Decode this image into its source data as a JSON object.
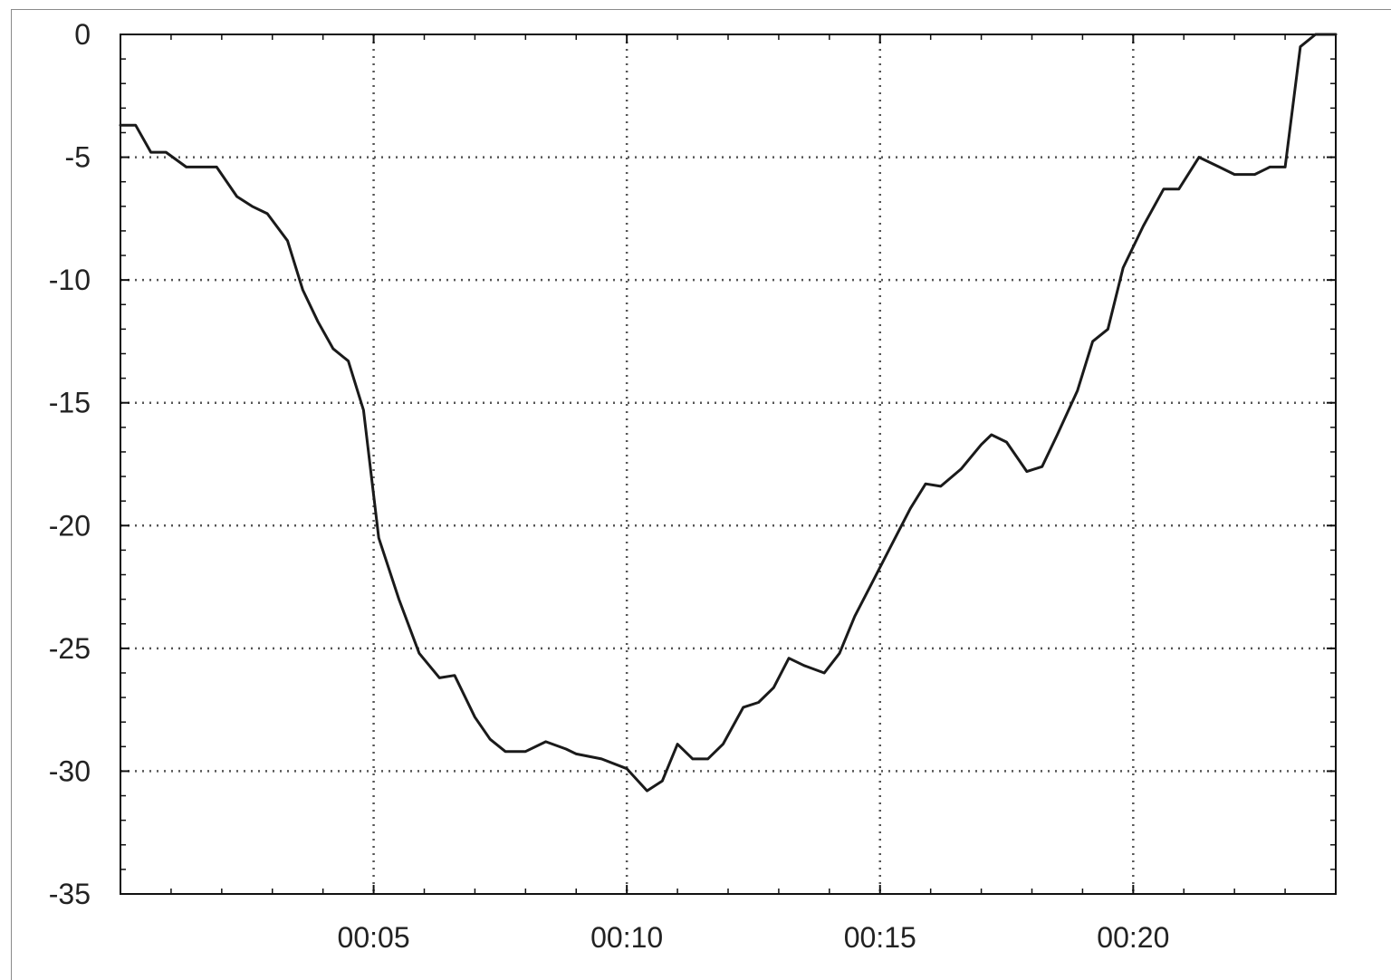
{
  "chart_data": {
    "type": "line",
    "title": "",
    "xlabel": "",
    "ylabel": "",
    "x_tick_labels": [
      "00:05",
      "00:10",
      "00:15",
      "00:20"
    ],
    "x_ticks_minutes": [
      5,
      10,
      15,
      20
    ],
    "xlim_minutes": [
      0,
      24
    ],
    "y_tick_labels": [
      "0",
      "-5",
      "-10",
      "-15",
      "-20",
      "-25",
      "-30",
      "-35"
    ],
    "y_ticks": [
      0,
      -5,
      -10,
      -15,
      -20,
      -25,
      -30,
      -35
    ],
    "ylim": [
      -35,
      0
    ],
    "grid": true,
    "grid_style": "dotted",
    "line_color": "#1a1a1a",
    "series": [
      {
        "x_minutes": [
          0.0,
          0.3,
          0.6,
          0.9,
          1.3,
          1.6,
          1.9,
          2.3,
          2.6,
          2.9,
          3.3,
          3.6,
          3.9,
          4.2,
          4.5,
          4.8,
          5.1,
          5.5,
          5.9,
          6.3,
          6.6,
          7.0,
          7.3,
          7.6,
          8.0,
          8.4,
          8.8,
          9.0,
          9.5,
          10.0,
          10.4,
          10.7,
          11.0,
          11.3,
          11.6,
          11.9,
          12.3,
          12.6,
          12.9,
          13.2,
          13.5,
          13.9,
          14.2,
          14.5,
          14.8,
          15.2,
          15.6,
          15.9,
          16.2,
          16.6,
          17.0,
          17.2,
          17.5,
          17.9,
          18.2,
          18.5,
          18.9,
          19.2,
          19.5,
          19.8,
          20.2,
          20.6,
          20.9,
          21.3,
          21.7,
          22.0,
          22.4,
          22.7,
          23.0,
          23.3,
          23.6,
          24.0
        ],
        "y": [
          -3.7,
          -3.7,
          -4.8,
          -4.8,
          -5.4,
          -5.4,
          -5.4,
          -6.6,
          -7.0,
          -7.3,
          -8.4,
          -10.4,
          -11.7,
          -12.8,
          -13.3,
          -15.3,
          -20.5,
          -23.0,
          -25.2,
          -26.2,
          -26.1,
          -27.8,
          -28.7,
          -29.2,
          -29.2,
          -28.8,
          -29.1,
          -29.3,
          -29.5,
          -29.9,
          -30.8,
          -30.4,
          -28.9,
          -29.5,
          -29.5,
          -28.9,
          -27.4,
          -27.2,
          -26.6,
          -25.4,
          -25.7,
          -26.0,
          -25.2,
          -23.7,
          -22.5,
          -20.9,
          -19.3,
          -18.3,
          -18.4,
          -17.7,
          -16.7,
          -16.3,
          -16.6,
          -17.8,
          -17.6,
          -16.3,
          -14.5,
          -12.5,
          -12.0,
          -9.5,
          -7.8,
          -6.3,
          -6.3,
          -5.0,
          -5.4,
          -5.7,
          -5.7,
          -5.4,
          -5.4,
          -0.5,
          0.0,
          0.0
        ]
      }
    ]
  }
}
